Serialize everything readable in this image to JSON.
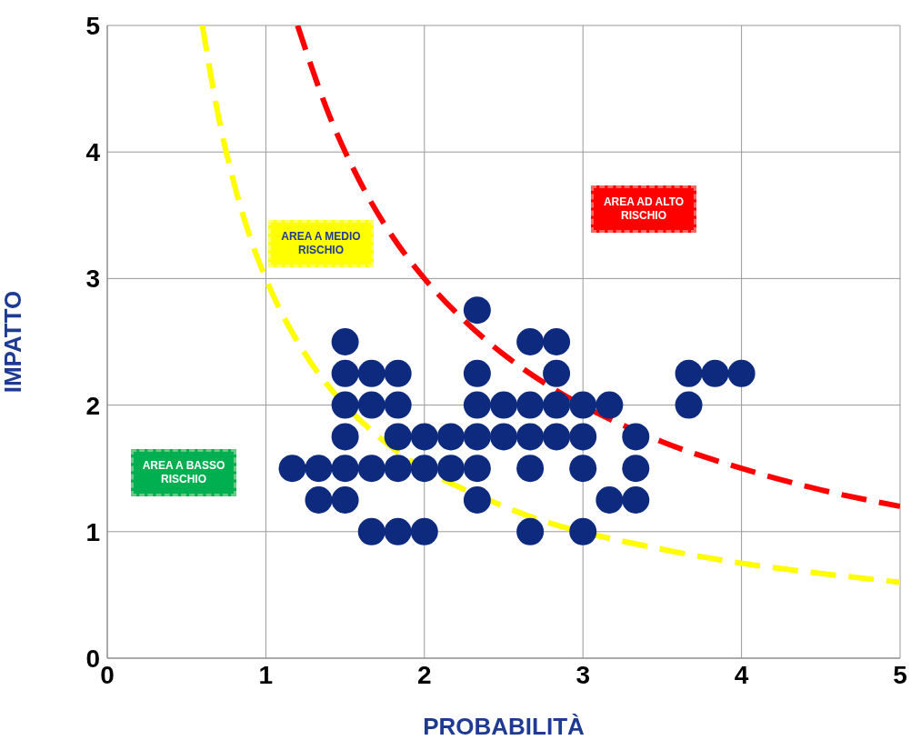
{
  "chart_data": {
    "type": "scatter",
    "xlabel": "PROBABILITÀ",
    "ylabel": "IMPATTO",
    "xlim": [
      0,
      5
    ],
    "xticks": [
      0,
      1,
      2,
      3,
      4,
      5
    ],
    "ylim": [
      0,
      5
    ],
    "yticks": [
      0,
      1,
      2,
      3,
      4,
      5
    ],
    "grid": true,
    "legend": false,
    "annotations": [
      "AREA A MEDIO RISCHIO",
      "AREA AD ALTO RISCHIO",
      "AREA A BASSO RISCHIO"
    ],
    "series": [
      {
        "marker": "circle",
        "color": "#0d2a7e",
        "x": [
          2.333,
          1.5,
          2.667,
          2.833,
          1.5,
          1.667,
          1.833,
          2.333,
          2.833,
          3.667,
          3.833,
          4.0,
          1.5,
          1.667,
          1.833,
          2.333,
          2.5,
          2.667,
          2.833,
          3.0,
          3.167,
          3.667,
          1.5,
          1.833,
          2.0,
          2.167,
          2.333,
          2.5,
          2.667,
          2.833,
          3.0,
          3.333,
          1.167,
          1.333,
          1.5,
          1.667,
          1.833,
          2.0,
          2.167,
          2.333,
          2.667,
          3.0,
          3.333,
          1.333,
          1.5,
          2.333,
          3.167,
          3.333,
          1.667,
          1.833,
          2.0,
          2.667,
          3.0
        ],
        "values": [
          2.75,
          2.5,
          2.5,
          2.5,
          2.25,
          2.25,
          2.25,
          2.25,
          2.25,
          2.25,
          2.25,
          2.25,
          2,
          2,
          2,
          2,
          2,
          2,
          2,
          2,
          2,
          2,
          1.75,
          1.75,
          1.75,
          1.75,
          1.75,
          1.75,
          1.75,
          1.75,
          1.75,
          1.75,
          1.5,
          1.5,
          1.5,
          1.5,
          1.5,
          1.5,
          1.5,
          1.5,
          1.5,
          1.5,
          1.5,
          1.25,
          1.25,
          1.25,
          1.25,
          1.25,
          1,
          1,
          1,
          1,
          1
        ]
      },
      {
        "type": "line",
        "color": "#ff0000",
        "line_style": "dashed",
        "x": [
          1.2,
          1.4,
          1.6,
          1.8,
          2,
          2.25,
          2.5,
          2.75,
          3.5,
          4,
          4.5,
          5
        ],
        "values": [
          5,
          4.29,
          3.75,
          3.33,
          3,
          2.67,
          2.4,
          2.18,
          1.71,
          1.5,
          1.33,
          1.2
        ]
      },
      {
        "type": "line",
        "color": "#ffff00",
        "line_style": "dashed",
        "x": [
          0.6,
          0.7,
          0.8,
          0.9,
          1,
          1.25,
          1.5,
          1.75,
          2.5,
          3.5,
          4,
          4.5,
          5
        ],
        "values": [
          5,
          4.29,
          3.75,
          3.33,
          3,
          2.4,
          2,
          1.71,
          1.2,
          0.86,
          0.75,
          0.67,
          0.6
        ]
      }
    ]
  }
}
